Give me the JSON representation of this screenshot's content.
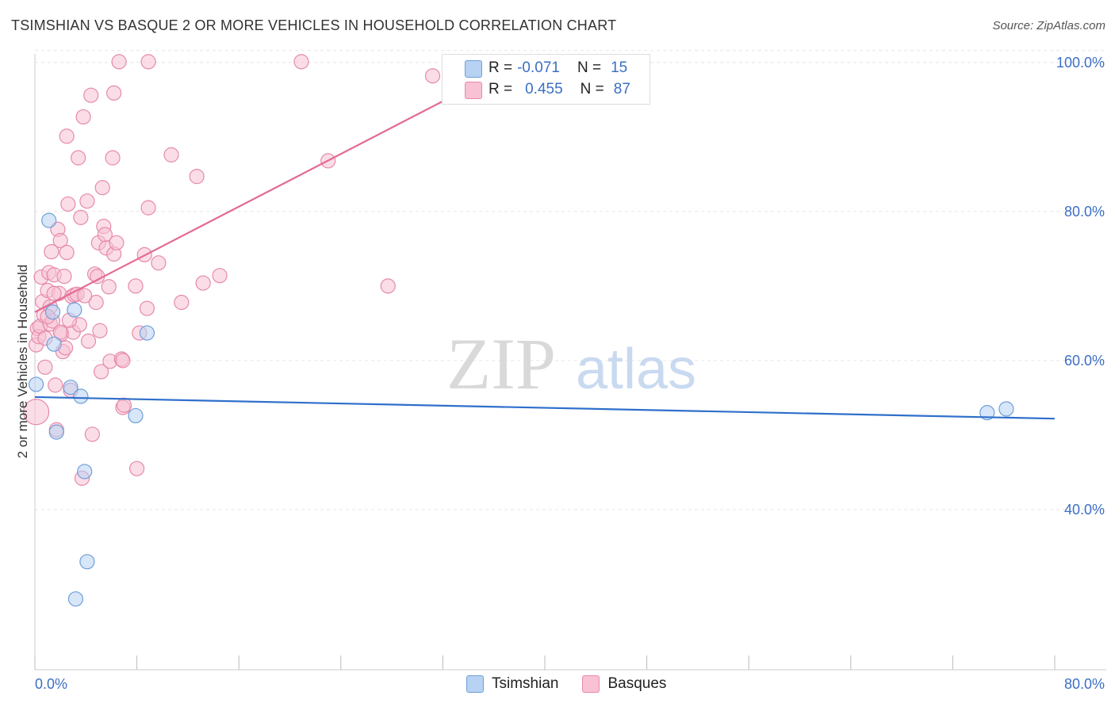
{
  "title": "TSIMSHIAN VS BASQUE 2 OR MORE VEHICLES IN HOUSEHOLD CORRELATION CHART",
  "source": "Source: ZipAtlas.com",
  "watermark": {
    "zip": "ZIP",
    "atlas": "atlas"
  },
  "legend": {
    "rows": [
      {
        "r_label": "R =",
        "r_value": "-0.071",
        "n_label": "N =",
        "n_value": "15"
      },
      {
        "r_label": "R =",
        "r_value": "0.455",
        "n_label": "N =",
        "n_value": "87"
      }
    ]
  },
  "colors": {
    "tsimshian_fill": "#b7d2f2",
    "tsimshian_stroke": "#6f9fd8",
    "tsimshian_line": "#2f6fcb",
    "basques_fill": "#f8c1d4",
    "basques_stroke": "#e58aab",
    "basques_line": "#e36a93",
    "tick_label": "#3b6fc4",
    "grid": "#e6e6e6"
  },
  "chart_data": {
    "type": "scatter",
    "title": "TSIMSHIAN VS BASQUE 2 OR MORE VEHICLES IN HOUSEHOLD CORRELATION CHART",
    "xlabel": "",
    "ylabel": "2 or more Vehicles in Household",
    "xlim": [
      0,
      80
    ],
    "ylim": [
      18.5,
      102
    ],
    "x_tick_labels": [
      "0.0%",
      "80.0%"
    ],
    "y_ticks": [
      40,
      60,
      80,
      100
    ],
    "y_tick_labels": [
      "40.0%",
      "60.0%",
      "80.0%",
      "100.0%"
    ],
    "grid": true,
    "legend_placement": "top-center",
    "series": [
      {
        "name": "Tsimshian",
        "points": [
          [
            0.1,
            56.8
          ],
          [
            1.1,
            78.8
          ],
          [
            1.4,
            66.5
          ],
          [
            1.5,
            62.2
          ],
          [
            1.7,
            50.4
          ],
          [
            2.8,
            56.4
          ],
          [
            3.1,
            66.8
          ],
          [
            3.6,
            55.2
          ],
          [
            3.9,
            45.1
          ],
          [
            4.1,
            33.0
          ],
          [
            3.2,
            28.0
          ],
          [
            7.9,
            52.6
          ],
          [
            8.8,
            63.7
          ],
          [
            74.7,
            53.0
          ],
          [
            76.2,
            53.5
          ]
        ],
        "trend": [
          [
            0,
            55.1
          ],
          [
            80,
            52.2
          ]
        ]
      },
      {
        "name": "Basques",
        "points": [
          [
            0.1,
            53.1
          ],
          [
            0.1,
            62.1
          ],
          [
            0.2,
            64.3
          ],
          [
            0.3,
            63.2
          ],
          [
            0.4,
            64.6
          ],
          [
            0.5,
            71.2
          ],
          [
            0.6,
            67.9
          ],
          [
            0.7,
            66.1
          ],
          [
            0.8,
            59.1
          ],
          [
            1.0,
            69.4
          ],
          [
            1.1,
            71.8
          ],
          [
            1.2,
            64.9
          ],
          [
            1.3,
            74.6
          ],
          [
            1.4,
            65.3
          ],
          [
            1.5,
            71.5
          ],
          [
            1.6,
            56.7
          ],
          [
            1.7,
            50.7
          ],
          [
            1.8,
            77.6
          ],
          [
            1.9,
            69.0
          ],
          [
            2.0,
            76.1
          ],
          [
            2.1,
            63.6
          ],
          [
            2.2,
            61.2
          ],
          [
            2.3,
            71.3
          ],
          [
            2.4,
            61.7
          ],
          [
            2.5,
            74.5
          ],
          [
            2.5,
            90.1
          ],
          [
            2.6,
            81.0
          ],
          [
            2.8,
            56.0
          ],
          [
            2.9,
            68.6
          ],
          [
            3.0,
            63.8
          ],
          [
            3.1,
            68.8
          ],
          [
            3.3,
            68.9
          ],
          [
            3.4,
            87.2
          ],
          [
            3.5,
            64.8
          ],
          [
            3.6,
            79.2
          ],
          [
            3.7,
            44.2
          ],
          [
            3.8,
            92.7
          ],
          [
            4.1,
            81.4
          ],
          [
            4.2,
            62.6
          ],
          [
            4.4,
            95.6
          ],
          [
            4.5,
            50.1
          ],
          [
            4.7,
            71.6
          ],
          [
            4.8,
            67.8
          ],
          [
            4.9,
            71.3
          ],
          [
            5.0,
            75.8
          ],
          [
            5.1,
            64.0
          ],
          [
            5.2,
            58.5
          ],
          [
            5.3,
            83.2
          ],
          [
            5.4,
            78.0
          ],
          [
            5.5,
            76.9
          ],
          [
            5.6,
            75.1
          ],
          [
            5.8,
            69.9
          ],
          [
            5.9,
            59.9
          ],
          [
            6.1,
            87.2
          ],
          [
            6.2,
            74.3
          ],
          [
            6.2,
            95.9
          ],
          [
            6.4,
            75.8
          ],
          [
            6.6,
            100.1
          ],
          [
            6.8,
            60.2
          ],
          [
            6.9,
            53.7
          ],
          [
            7.0,
            54.0
          ],
          [
            7.9,
            70.0
          ],
          [
            8.0,
            45.5
          ],
          [
            8.2,
            63.7
          ],
          [
            8.6,
            74.2
          ],
          [
            8.9,
            100.1
          ],
          [
            8.8,
            67.0
          ],
          [
            8.9,
            80.5
          ],
          [
            9.7,
            73.1
          ],
          [
            10.7,
            87.6
          ],
          [
            11.5,
            67.8
          ],
          [
            12.7,
            84.7
          ],
          [
            13.2,
            70.4
          ],
          [
            14.5,
            71.4
          ],
          [
            20.9,
            100.1
          ],
          [
            23.0,
            86.8
          ],
          [
            27.7,
            70.0
          ],
          [
            31.2,
            98.2
          ],
          [
            33.6,
            100.1
          ],
          [
            1.2,
            67.2
          ],
          [
            2.7,
            65.4
          ],
          [
            1.5,
            69.0
          ],
          [
            3.9,
            68.7
          ],
          [
            1.0,
            65.9
          ],
          [
            2.0,
            63.8
          ],
          [
            6.9,
            60.0
          ],
          [
            0.8,
            63.0
          ]
        ],
        "trend": [
          [
            0,
            66.5
          ],
          [
            38,
            100.1
          ]
        ]
      }
    ]
  },
  "bottom_legend": [
    {
      "label": "Tsimshian"
    },
    {
      "label": "Basques"
    }
  ]
}
